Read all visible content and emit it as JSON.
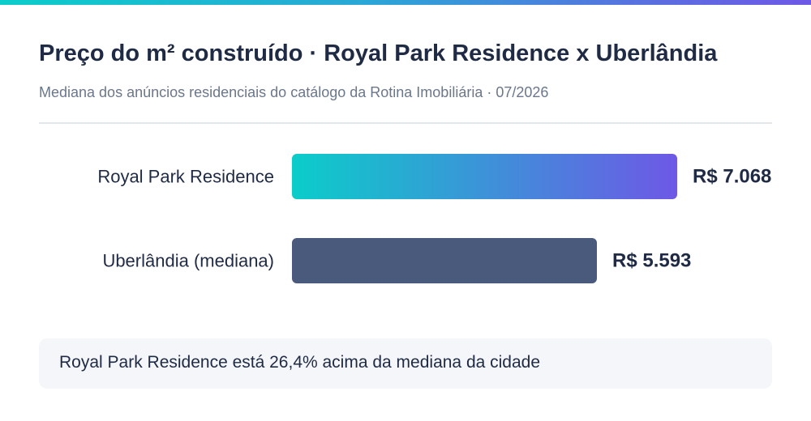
{
  "header": {
    "title": "Preço do m² construído · Royal Park Residence x Uberlândia",
    "subtitle": "Mediana dos anúncios residenciais do catálogo da Rotina Imobiliária · 07/2026"
  },
  "chart_data": {
    "type": "bar",
    "orientation": "horizontal",
    "categories": [
      "Royal Park Residence",
      "Uberlândia (mediana)"
    ],
    "values": [
      7068,
      5593
    ],
    "value_labels": [
      "R$ 7.068",
      "R$ 5.593"
    ],
    "unit": "R$/m²",
    "colors": {
      "highlight_start": "#0bcdca",
      "highlight_end": "#6e58e6",
      "baseline": "#4a5a7c"
    },
    "grid": false,
    "legend": "none"
  },
  "note": {
    "text": "Royal Park Residence está 26,4% acima da mediana da cidade"
  },
  "colors": {
    "title": "#1f2a44",
    "subtitle": "#6b778a",
    "accent_gradient_start": "#0bcdca",
    "accent_gradient_end": "#6e58e6",
    "note_background": "#f4f6f9"
  }
}
